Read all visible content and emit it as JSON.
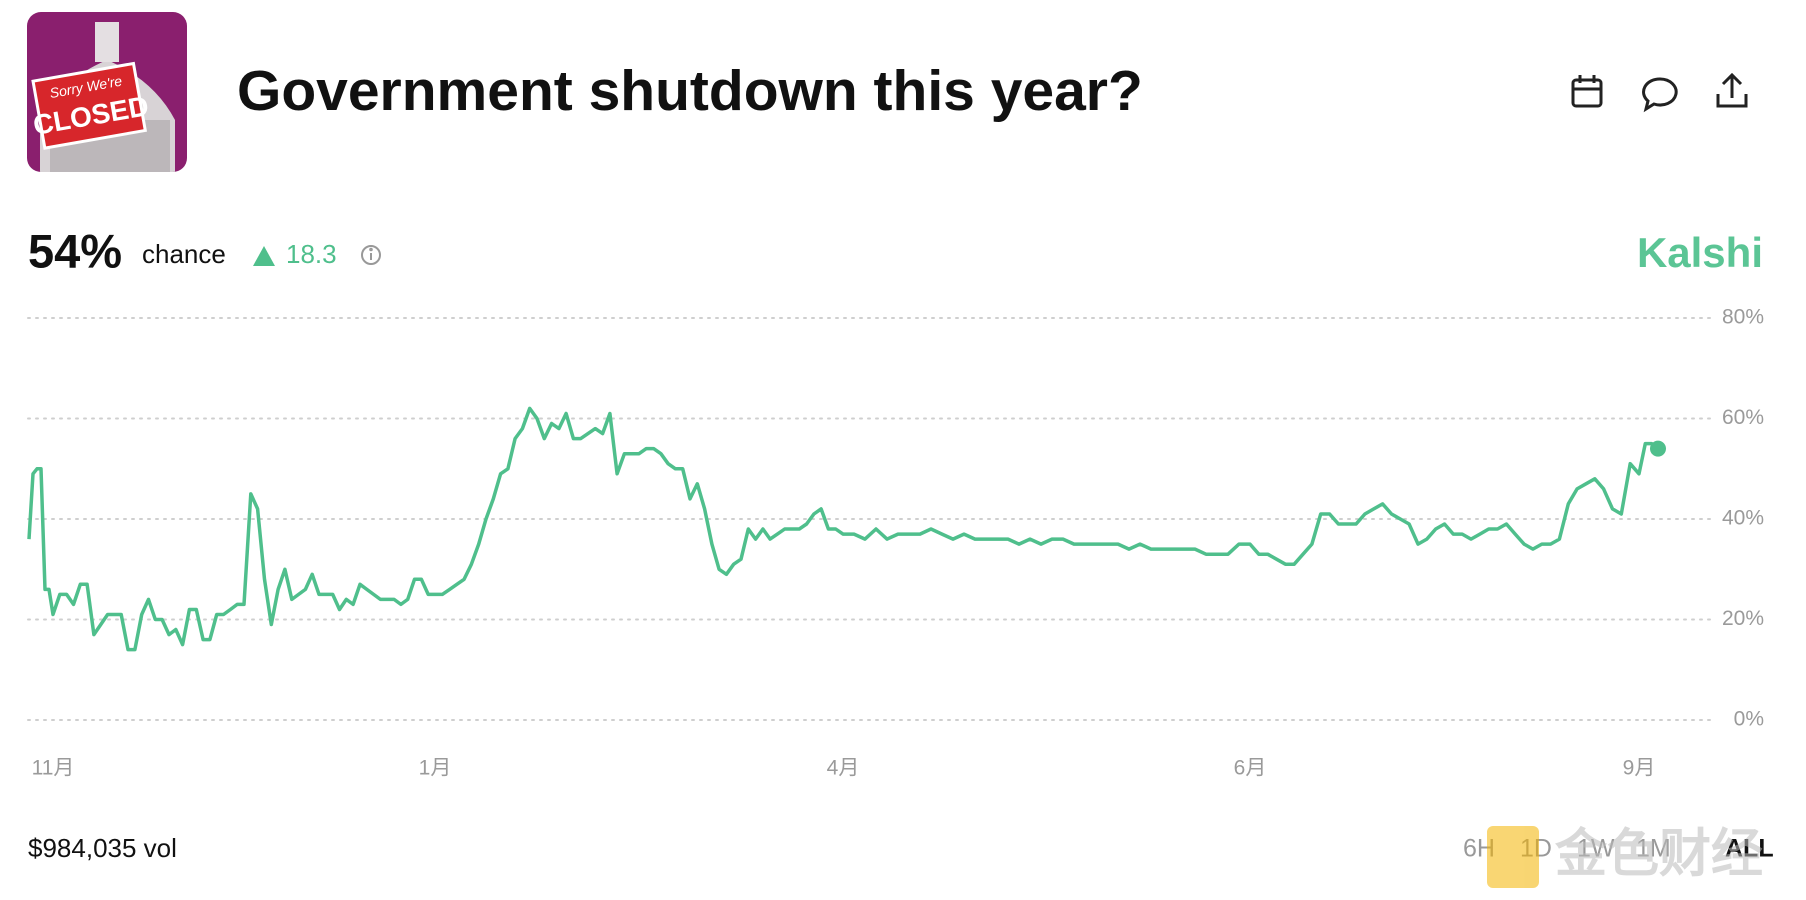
{
  "header": {
    "title": "Government shutdown this year?",
    "image_text": [
      "Sorry We're",
      "CLOSED"
    ]
  },
  "stats": {
    "probability": "54%",
    "probability_label": "chance",
    "change": "18.3",
    "source": "Kalshi",
    "volume": "$984,035 vol"
  },
  "range_buttons": [
    "6H",
    "1D",
    "1W",
    "1M",
    "ALL"
  ],
  "watermark": "金色财经",
  "chart_data": {
    "type": "line",
    "color": "#4fbf8c",
    "grid": true,
    "values": [
      36,
      49,
      50,
      50,
      26,
      26,
      21,
      25,
      25,
      23,
      27,
      27,
      17,
      19,
      21,
      21,
      21,
      14,
      14,
      21,
      24,
      20,
      20,
      17,
      18,
      15,
      22,
      22,
      16,
      16,
      21,
      21,
      22,
      23,
      23,
      45,
      42,
      28,
      19,
      26,
      30,
      24,
      25,
      26,
      29,
      25,
      25,
      25,
      22,
      24,
      23,
      27,
      26,
      25,
      24,
      24,
      24,
      23,
      24,
      28,
      28,
      25,
      25,
      25,
      26,
      27,
      28,
      31,
      35,
      40,
      44,
      49,
      50,
      56,
      58,
      62,
      60,
      56,
      59,
      58,
      61,
      56,
      56,
      57,
      58,
      57,
      61,
      49,
      53,
      53,
      53,
      54,
      54,
      53,
      51,
      50,
      50,
      44,
      47,
      42,
      35,
      30,
      29,
      31,
      32,
      38,
      36,
      38,
      36,
      37,
      38,
      38,
      38,
      39,
      41,
      42,
      38,
      38,
      37,
      37,
      36,
      38,
      36,
      37,
      37,
      37,
      38,
      37,
      36,
      37,
      36,
      36,
      36,
      36,
      35,
      36,
      35,
      36,
      36,
      35,
      35,
      35,
      35,
      35,
      34,
      35,
      34,
      34,
      34,
      34,
      34,
      33,
      33,
      33,
      35,
      35,
      33,
      33,
      32,
      31,
      31,
      33,
      35,
      41,
      41,
      39,
      39,
      39,
      41,
      42,
      43,
      41,
      40,
      39,
      35,
      36,
      38,
      39,
      37,
      37,
      36,
      37,
      38,
      38,
      39,
      37,
      35,
      34,
      35,
      35,
      36,
      43,
      46,
      47,
      48,
      46,
      42,
      41,
      51,
      49,
      55,
      55,
      54
    ],
    "xlim": [
      0,
      202
    ],
    "xticks": [
      {
        "value": 6,
        "label": "11月"
      },
      {
        "value": 62,
        "label": "1月"
      },
      {
        "value": 118,
        "label": "4月"
      },
      {
        "value": 155,
        "label": "6月"
      },
      {
        "value": 199,
        "label": "9月"
      }
    ],
    "ylim": [
      0,
      80
    ],
    "yticks": [
      {
        "value": 0,
        "label": "0%"
      },
      {
        "value": 20,
        "label": "20%"
      },
      {
        "value": 40,
        "label": "40%"
      },
      {
        "value": 60,
        "label": "60%"
      },
      {
        "value": 80,
        "label": "80%"
      }
    ]
  }
}
